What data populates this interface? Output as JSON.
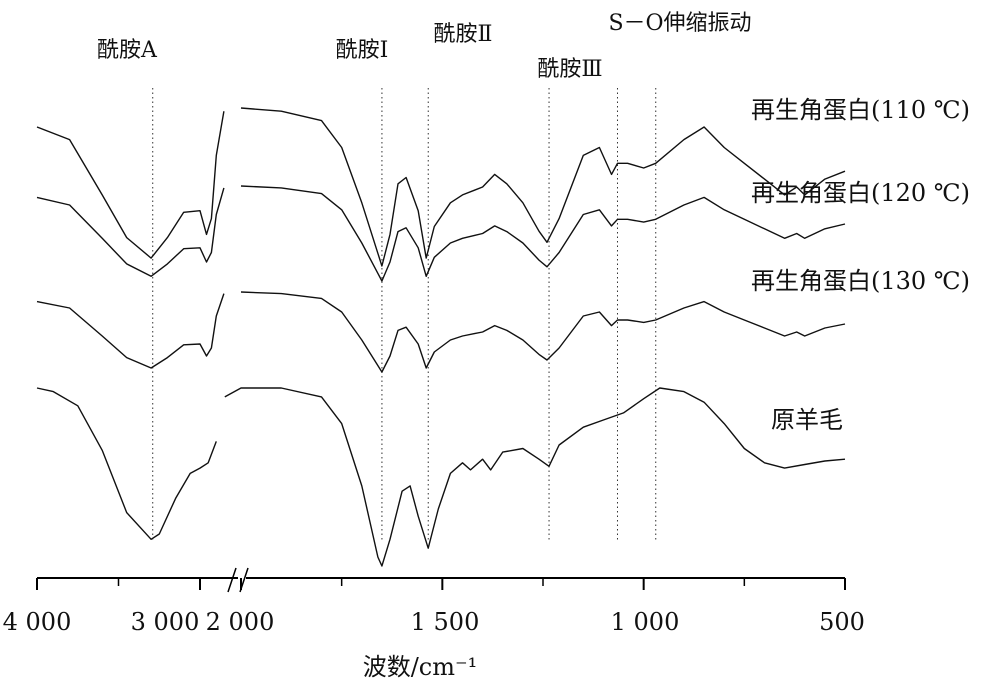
{
  "chart_data": {
    "type": "line",
    "title": "",
    "xlabel": "波数/cm⁻¹",
    "ylabel": "",
    "x_reversed": true,
    "x_axis_break": [
      2900,
      2050
    ],
    "xlim": [
      4000,
      500
    ],
    "x_ticks": [
      4000,
      3000,
      2000,
      1500,
      1000,
      500
    ],
    "x_tick_labels": [
      "4 000",
      "3 000",
      "2 000",
      "1 500",
      "1 000",
      "500"
    ],
    "annotations": [
      {
        "text": "酰胺A",
        "x": 3290
      },
      {
        "text": "酰胺Ⅰ",
        "x": 1650
      },
      {
        "text": "酰胺Ⅱ",
        "x": 1535
      },
      {
        "text": "酰胺Ⅲ",
        "x": 1235
      },
      {
        "text": "S－O伸缩振动",
        "x": 970
      }
    ],
    "marker_lines_x": [
      3290,
      1650,
      1535,
      1235,
      1065,
      970
    ],
    "series": [
      {
        "name": "再生角蛋白(110 ℃)",
        "points": [
          [
            4000,
            0.12
          ],
          [
            3800,
            0.2
          ],
          [
            3600,
            0.55
          ],
          [
            3450,
            0.82
          ],
          [
            3300,
            0.95
          ],
          [
            3200,
            0.82
          ],
          [
            3100,
            0.66
          ],
          [
            3000,
            0.65
          ],
          [
            2960,
            0.8
          ],
          [
            2930,
            0.7
          ],
          [
            2900,
            0.3
          ],
          [
            2850,
            0.02
          ],
          [
            2000,
            0.0
          ],
          [
            1900,
            0.02
          ],
          [
            1800,
            0.08
          ],
          [
            1750,
            0.25
          ],
          [
            1700,
            0.6
          ],
          [
            1660,
            0.92
          ],
          [
            1650,
            1.0
          ],
          [
            1630,
            0.8
          ],
          [
            1610,
            0.48
          ],
          [
            1590,
            0.44
          ],
          [
            1560,
            0.65
          ],
          [
            1540,
            0.95
          ],
          [
            1520,
            0.75
          ],
          [
            1480,
            0.6
          ],
          [
            1450,
            0.55
          ],
          [
            1420,
            0.52
          ],
          [
            1400,
            0.5
          ],
          [
            1370,
            0.42
          ],
          [
            1340,
            0.48
          ],
          [
            1300,
            0.6
          ],
          [
            1260,
            0.78
          ],
          [
            1240,
            0.85
          ],
          [
            1210,
            0.7
          ],
          [
            1150,
            0.3
          ],
          [
            1110,
            0.25
          ],
          [
            1080,
            0.42
          ],
          [
            1065,
            0.35
          ],
          [
            1040,
            0.35
          ],
          [
            1000,
            0.38
          ],
          [
            970,
            0.35
          ],
          [
            900,
            0.2
          ],
          [
            850,
            0.12
          ],
          [
            800,
            0.25
          ],
          [
            750,
            0.35
          ],
          [
            700,
            0.45
          ],
          [
            650,
            0.55
          ],
          [
            620,
            0.5
          ],
          [
            600,
            0.55
          ],
          [
            550,
            0.45
          ],
          [
            500,
            0.4
          ]
        ]
      },
      {
        "name": "再生角蛋白(120 ℃)",
        "points": [
          [
            4000,
            0.12
          ],
          [
            3800,
            0.2
          ],
          [
            3600,
            0.55
          ],
          [
            3450,
            0.82
          ],
          [
            3300,
            0.95
          ],
          [
            3200,
            0.82
          ],
          [
            3100,
            0.66
          ],
          [
            3000,
            0.65
          ],
          [
            2960,
            0.8
          ],
          [
            2930,
            0.7
          ],
          [
            2900,
            0.3
          ],
          [
            2850,
            0.02
          ],
          [
            2000,
            0.0
          ],
          [
            1900,
            0.02
          ],
          [
            1800,
            0.08
          ],
          [
            1750,
            0.25
          ],
          [
            1700,
            0.6
          ],
          [
            1660,
            0.92
          ],
          [
            1650,
            1.0
          ],
          [
            1630,
            0.8
          ],
          [
            1610,
            0.48
          ],
          [
            1590,
            0.44
          ],
          [
            1560,
            0.65
          ],
          [
            1540,
            0.95
          ],
          [
            1520,
            0.75
          ],
          [
            1480,
            0.6
          ],
          [
            1450,
            0.55
          ],
          [
            1420,
            0.52
          ],
          [
            1400,
            0.5
          ],
          [
            1370,
            0.42
          ],
          [
            1340,
            0.48
          ],
          [
            1300,
            0.6
          ],
          [
            1260,
            0.78
          ],
          [
            1240,
            0.85
          ],
          [
            1210,
            0.7
          ],
          [
            1150,
            0.3
          ],
          [
            1110,
            0.25
          ],
          [
            1080,
            0.42
          ],
          [
            1065,
            0.35
          ],
          [
            1040,
            0.35
          ],
          [
            1000,
            0.38
          ],
          [
            970,
            0.35
          ],
          [
            900,
            0.2
          ],
          [
            850,
            0.12
          ],
          [
            800,
            0.25
          ],
          [
            750,
            0.35
          ],
          [
            700,
            0.45
          ],
          [
            650,
            0.55
          ],
          [
            620,
            0.5
          ],
          [
            600,
            0.55
          ],
          [
            550,
            0.45
          ],
          [
            500,
            0.4
          ]
        ]
      },
      {
        "name": "再生角蛋白(130 ℃)",
        "points": [
          [
            4000,
            0.12
          ],
          [
            3800,
            0.2
          ],
          [
            3600,
            0.55
          ],
          [
            3450,
            0.82
          ],
          [
            3300,
            0.95
          ],
          [
            3200,
            0.82
          ],
          [
            3100,
            0.66
          ],
          [
            3000,
            0.65
          ],
          [
            2960,
            0.8
          ],
          [
            2930,
            0.7
          ],
          [
            2900,
            0.3
          ],
          [
            2850,
            0.02
          ],
          [
            2000,
            0.0
          ],
          [
            1900,
            0.02
          ],
          [
            1800,
            0.08
          ],
          [
            1750,
            0.25
          ],
          [
            1700,
            0.6
          ],
          [
            1660,
            0.92
          ],
          [
            1650,
            1.0
          ],
          [
            1630,
            0.8
          ],
          [
            1610,
            0.48
          ],
          [
            1590,
            0.44
          ],
          [
            1560,
            0.65
          ],
          [
            1540,
            0.95
          ],
          [
            1520,
            0.75
          ],
          [
            1480,
            0.6
          ],
          [
            1450,
            0.55
          ],
          [
            1420,
            0.52
          ],
          [
            1400,
            0.5
          ],
          [
            1370,
            0.42
          ],
          [
            1340,
            0.48
          ],
          [
            1300,
            0.6
          ],
          [
            1260,
            0.78
          ],
          [
            1240,
            0.85
          ],
          [
            1210,
            0.7
          ],
          [
            1150,
            0.3
          ],
          [
            1110,
            0.25
          ],
          [
            1080,
            0.42
          ],
          [
            1065,
            0.35
          ],
          [
            1040,
            0.35
          ],
          [
            1000,
            0.38
          ],
          [
            970,
            0.35
          ],
          [
            900,
            0.2
          ],
          [
            850,
            0.12
          ],
          [
            800,
            0.25
          ],
          [
            750,
            0.35
          ],
          [
            700,
            0.45
          ],
          [
            650,
            0.55
          ],
          [
            620,
            0.5
          ],
          [
            600,
            0.55
          ],
          [
            550,
            0.45
          ],
          [
            500,
            0.4
          ]
        ]
      },
      {
        "name": "原羊毛",
        "points": [
          [
            4000,
            0.0
          ],
          [
            3900,
            0.02
          ],
          [
            3750,
            0.1
          ],
          [
            3600,
            0.35
          ],
          [
            3450,
            0.7
          ],
          [
            3300,
            0.85
          ],
          [
            3250,
            0.82
          ],
          [
            3150,
            0.62
          ],
          [
            3060,
            0.48
          ],
          [
            3000,
            0.45
          ],
          [
            2950,
            0.42
          ],
          [
            2900,
            0.3
          ],
          [
            2800,
            0.05
          ],
          [
            2000,
            0.0
          ],
          [
            1900,
            0.0
          ],
          [
            1800,
            0.05
          ],
          [
            1750,
            0.2
          ],
          [
            1700,
            0.55
          ],
          [
            1660,
            0.95
          ],
          [
            1650,
            1.0
          ],
          [
            1630,
            0.85
          ],
          [
            1600,
            0.58
          ],
          [
            1580,
            0.55
          ],
          [
            1560,
            0.72
          ],
          [
            1535,
            0.9
          ],
          [
            1510,
            0.68
          ],
          [
            1480,
            0.48
          ],
          [
            1450,
            0.42
          ],
          [
            1430,
            0.46
          ],
          [
            1400,
            0.4
          ],
          [
            1380,
            0.46
          ],
          [
            1350,
            0.36
          ],
          [
            1300,
            0.34
          ],
          [
            1260,
            0.4
          ],
          [
            1235,
            0.44
          ],
          [
            1210,
            0.32
          ],
          [
            1150,
            0.22
          ],
          [
            1100,
            0.18
          ],
          [
            1050,
            0.14
          ],
          [
            1000,
            0.06
          ],
          [
            960,
            0.0
          ],
          [
            900,
            0.02
          ],
          [
            850,
            0.08
          ],
          [
            800,
            0.2
          ],
          [
            750,
            0.34
          ],
          [
            700,
            0.42
          ],
          [
            650,
            0.45
          ],
          [
            600,
            0.43
          ],
          [
            550,
            0.41
          ],
          [
            500,
            0.4
          ]
        ]
      }
    ]
  }
}
